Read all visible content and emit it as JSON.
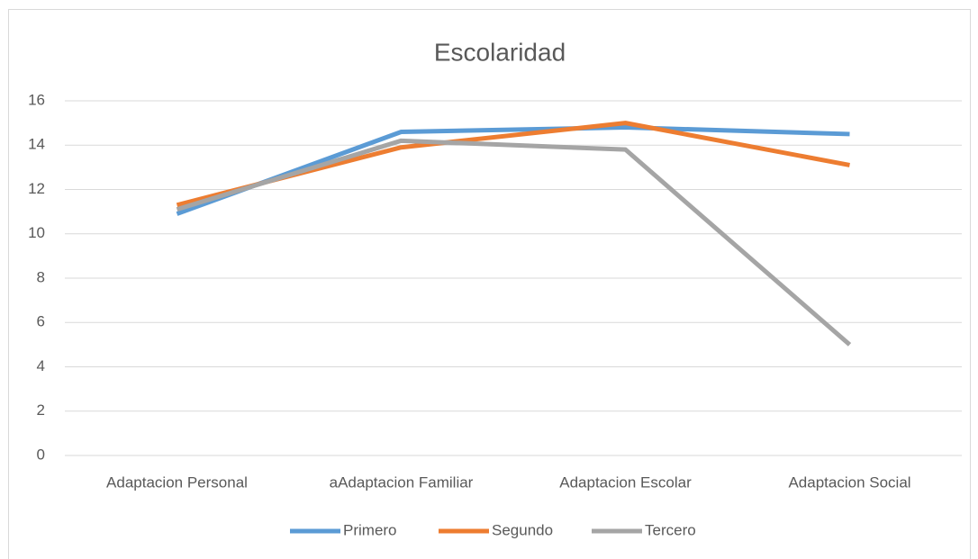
{
  "chart_data": {
    "type": "line",
    "title": "Escolaridad",
    "categories": [
      "Adaptacion Personal",
      "aAdaptacion Familiar",
      "Adaptacion Escolar",
      "Adaptacion Social"
    ],
    "series": [
      {
        "name": "Primero",
        "color": "#5b9bd5",
        "values": [
          10.9,
          14.6,
          14.8,
          14.5
        ]
      },
      {
        "name": "Segundo",
        "color": "#ed7d31",
        "values": [
          11.3,
          13.9,
          15.0,
          13.1
        ]
      },
      {
        "name": "Tercero",
        "color": "#a5a5a5",
        "values": [
          11.1,
          14.2,
          13.8,
          5.0
        ]
      }
    ],
    "ylim": [
      0,
      16
    ],
    "yticks": [
      0,
      2,
      4,
      6,
      8,
      10,
      12,
      14,
      16
    ],
    "grid": true,
    "legend": "bottom"
  }
}
